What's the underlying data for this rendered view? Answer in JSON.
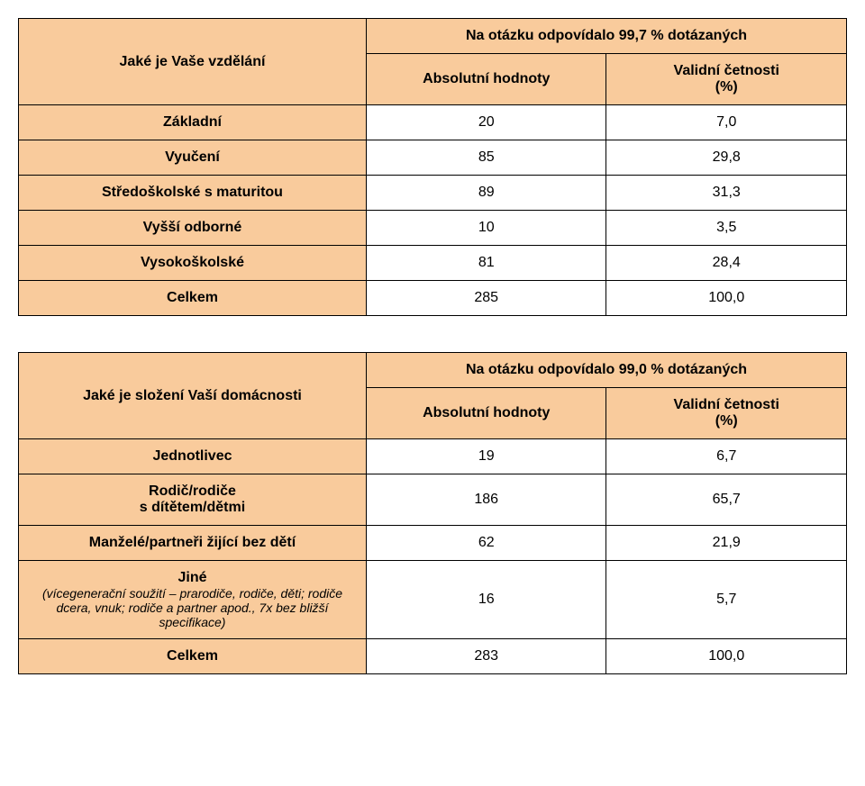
{
  "table1": {
    "header": {
      "question": "Jaké je Vaše vzdělání",
      "response_note": "Na otázku odpovídalo 99,7 % dotázaných",
      "col1": "Absolutní hodnoty",
      "col2_line1": "Validní četnosti",
      "col2_line2": "(%)"
    },
    "rows": [
      {
        "label": "Základní",
        "abs": "20",
        "pct": "7,0"
      },
      {
        "label": "Vyučení",
        "abs": "85",
        "pct": "29,8"
      },
      {
        "label": "Středoškolské s maturitou",
        "abs": "89",
        "pct": "31,3"
      },
      {
        "label": "Vyšší odborné",
        "abs": "10",
        "pct": "3,5"
      },
      {
        "label": "Vysokoškolské",
        "abs": "81",
        "pct": "28,4"
      },
      {
        "label": "Celkem",
        "abs": "285",
        "pct": "100,0"
      }
    ]
  },
  "table2": {
    "header": {
      "question": "Jaké je složení Vaší domácnosti",
      "response_note": "Na otázku odpovídalo 99,0 % dotázaných",
      "col1": "Absolutní hodnoty",
      "col2_line1": "Validní četnosti",
      "col2_line2": "(%)"
    },
    "rows": [
      {
        "label": "Jednotlivec",
        "sub": "",
        "abs": "19",
        "pct": "6,7"
      },
      {
        "label": "Rodič/rodiče",
        "sub": "s dítětem/dětmi",
        "abs": "186",
        "pct": "65,7"
      },
      {
        "label": "Manželé/partneři žijící bez dětí",
        "sub": "",
        "abs": "62",
        "pct": "21,9"
      },
      {
        "label": "Jiné",
        "sub": "(vícegenerační soužití – prarodiče, rodiče, děti; rodiče dcera, vnuk; rodiče a partner apod., 7x bez bližší specifikace)",
        "abs": "16",
        "pct": "5,7"
      },
      {
        "label": "Celkem",
        "sub": "",
        "abs": "283",
        "pct": "100,0"
      }
    ]
  }
}
